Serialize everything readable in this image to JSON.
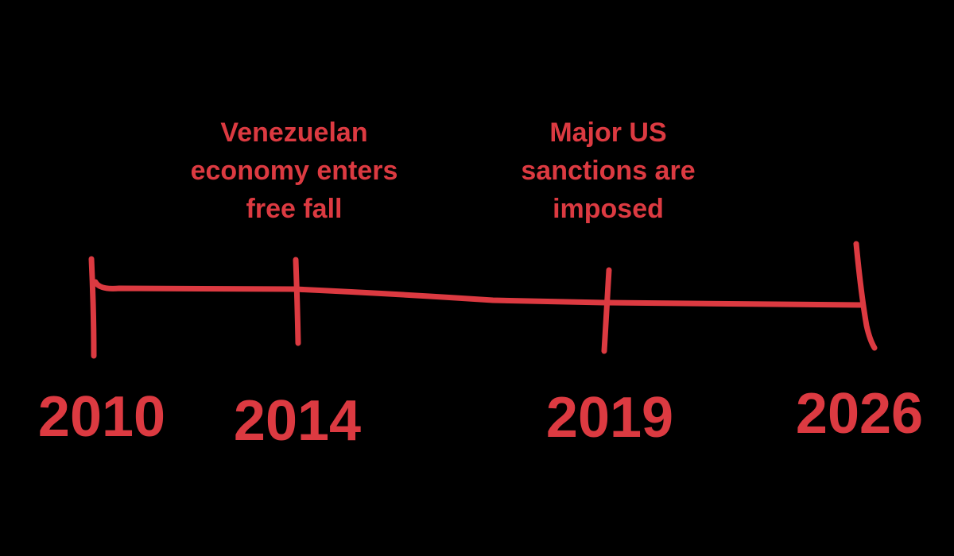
{
  "events": [
    {
      "year": "2010"
    },
    {
      "year": "2014",
      "label": [
        "Venezuelan",
        "economy enters",
        "free fall"
      ]
    },
    {
      "year": "2019",
      "label": [
        "Major US",
        "sanctions are",
        "imposed"
      ]
    },
    {
      "year": "2026"
    }
  ]
}
